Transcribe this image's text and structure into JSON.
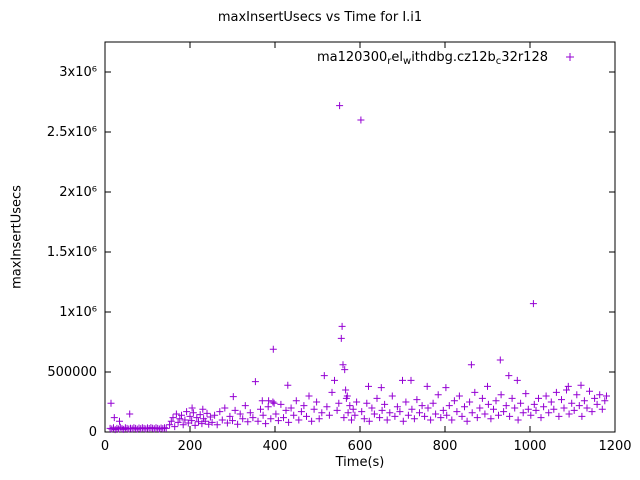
{
  "chart_data": {
    "type": "scatter",
    "title": "maxInsertUsecs vs Time for I.i1",
    "xlabel": "Time(s)",
    "ylabel": "maxInsertUsecs",
    "xlim": [
      0,
      1200
    ],
    "ylim": [
      0,
      3250000
    ],
    "grid": false,
    "x_ticks": [
      0,
      200,
      400,
      600,
      800,
      1000,
      1200
    ],
    "y_ticks": [
      {
        "v": 0,
        "label": "0"
      },
      {
        "v": 500000,
        "label": "500000"
      },
      {
        "v": 1000000,
        "label": "1x10⁶"
      },
      {
        "v": 1500000,
        "label": "1.5x10⁶"
      },
      {
        "v": 2000000,
        "label": "2x10⁶"
      },
      {
        "v": 2500000,
        "label": "2.5x10⁶"
      },
      {
        "v": 3000000,
        "label": "3x10⁶"
      }
    ],
    "legend": {
      "position": "top-right-inside",
      "marker": "plus",
      "segments": [
        {
          "text": "ma120300",
          "sub": false
        },
        {
          "text": "r",
          "sub": true
        },
        {
          "text": "el",
          "sub": false
        },
        {
          "text": "w",
          "sub": true
        },
        {
          "text": "ithdbg.cz12b",
          "sub": false
        },
        {
          "text": "c",
          "sub": true
        },
        {
          "text": "32r128",
          "sub": false
        }
      ]
    },
    "series": [
      {
        "name": "ma120300_rel_withdbg.cz12b_c32r128",
        "marker": "plus",
        "color": "#9400d3",
        "points": [
          [
            12,
            30000
          ],
          [
            14,
            240000
          ],
          [
            16,
            25000
          ],
          [
            20,
            35000
          ],
          [
            22,
            120000
          ],
          [
            24,
            20000
          ],
          [
            28,
            30000
          ],
          [
            32,
            25000
          ],
          [
            34,
            90000
          ],
          [
            36,
            40000
          ],
          [
            40,
            28000
          ],
          [
            44,
            22000
          ],
          [
            48,
            35000
          ],
          [
            52,
            30000
          ],
          [
            56,
            25000
          ],
          [
            58,
            150000
          ],
          [
            60,
            32000
          ],
          [
            64,
            27000
          ],
          [
            68,
            35000
          ],
          [
            72,
            30000
          ],
          [
            76,
            24000
          ],
          [
            80,
            33000
          ],
          [
            84,
            28000
          ],
          [
            88,
            36000
          ],
          [
            92,
            30000
          ],
          [
            96,
            26000
          ],
          [
            100,
            34000
          ],
          [
            104,
            29000
          ],
          [
            108,
            37000
          ],
          [
            112,
            31000
          ],
          [
            116,
            27000
          ],
          [
            120,
            35000
          ],
          [
            124,
            30000
          ],
          [
            128,
            25000
          ],
          [
            132,
            33000
          ],
          [
            136,
            28000
          ],
          [
            140,
            36000
          ],
          [
            144,
            30000
          ],
          [
            152,
            60000
          ],
          [
            156,
            90000
          ],
          [
            160,
            120000
          ],
          [
            164,
            45000
          ],
          [
            168,
            150000
          ],
          [
            172,
            80000
          ],
          [
            176,
            110000
          ],
          [
            180,
            140000
          ],
          [
            184,
            60000
          ],
          [
            188,
            100000
          ],
          [
            192,
            170000
          ],
          [
            196,
            75000
          ],
          [
            200,
            130000
          ],
          [
            204,
            95000
          ],
          [
            205,
            200000
          ],
          [
            208,
            160000
          ],
          [
            212,
            55000
          ],
          [
            216,
            120000
          ],
          [
            220,
            85000
          ],
          [
            224,
            145000
          ],
          [
            228,
            70000
          ],
          [
            230,
            190000
          ],
          [
            232,
            110000
          ],
          [
            236,
            90000
          ],
          [
            240,
            155000
          ],
          [
            244,
            65000
          ],
          [
            248,
            125000
          ],
          [
            252,
            80000
          ],
          [
            258,
            140000
          ],
          [
            264,
            60000
          ],
          [
            270,
            170000
          ],
          [
            276,
            100000
          ],
          [
            282,
            200000
          ],
          [
            288,
            75000
          ],
          [
            294,
            130000
          ],
          [
            300,
            95000
          ],
          [
            302,
            295000
          ],
          [
            306,
            180000
          ],
          [
            312,
            65000
          ],
          [
            318,
            150000
          ],
          [
            324,
            110000
          ],
          [
            330,
            220000
          ],
          [
            336,
            85000
          ],
          [
            342,
            160000
          ],
          [
            348,
            120000
          ],
          [
            354,
            420000
          ],
          [
            360,
            90000
          ],
          [
            366,
            190000
          ],
          [
            370,
            260000
          ],
          [
            372,
            140000
          ],
          [
            378,
            70000
          ],
          [
            384,
            210000
          ],
          [
            385,
            260000
          ],
          [
            390,
            110000
          ],
          [
            395,
            250000
          ],
          [
            396,
            690000
          ],
          [
            398,
            240000
          ],
          [
            402,
            150000
          ],
          [
            408,
            95000
          ],
          [
            414,
            230000
          ],
          [
            420,
            120000
          ],
          [
            426,
            180000
          ],
          [
            430,
            390000
          ],
          [
            432,
            80000
          ],
          [
            438,
            200000
          ],
          [
            444,
            140000
          ],
          [
            450,
            260000
          ],
          [
            456,
            100000
          ],
          [
            462,
            170000
          ],
          [
            468,
            220000
          ],
          [
            474,
            130000
          ],
          [
            480,
            300000
          ],
          [
            486,
            90000
          ],
          [
            492,
            190000
          ],
          [
            498,
            250000
          ],
          [
            504,
            110000
          ],
          [
            510,
            160000
          ],
          [
            516,
            470000
          ],
          [
            522,
            210000
          ],
          [
            528,
            140000
          ],
          [
            534,
            330000
          ],
          [
            540,
            430000
          ],
          [
            546,
            180000
          ],
          [
            550,
            240000
          ],
          [
            552,
            2720000
          ],
          [
            556,
            780000
          ],
          [
            558,
            880000
          ],
          [
            560,
            560000
          ],
          [
            562,
            120000
          ],
          [
            564,
            520000
          ],
          [
            566,
            350000
          ],
          [
            568,
            280000
          ],
          [
            570,
            300000
          ],
          [
            572,
            160000
          ],
          [
            576,
            220000
          ],
          [
            580,
            100000
          ],
          [
            584,
            190000
          ],
          [
            588,
            140000
          ],
          [
            592,
            250000
          ],
          [
            602,
            2600000
          ],
          [
            604,
            170000
          ],
          [
            610,
            110000
          ],
          [
            616,
            240000
          ],
          [
            620,
            380000
          ],
          [
            622,
            90000
          ],
          [
            628,
            200000
          ],
          [
            634,
            150000
          ],
          [
            640,
            280000
          ],
          [
            646,
            120000
          ],
          [
            650,
            370000
          ],
          [
            652,
            180000
          ],
          [
            658,
            230000
          ],
          [
            664,
            100000
          ],
          [
            670,
            160000
          ],
          [
            676,
            300000
          ],
          [
            682,
            130000
          ],
          [
            688,
            210000
          ],
          [
            694,
            170000
          ],
          [
            700,
            430000
          ],
          [
            702,
            90000
          ],
          [
            708,
            250000
          ],
          [
            714,
            140000
          ],
          [
            720,
            430000
          ],
          [
            722,
            190000
          ],
          [
            728,
            110000
          ],
          [
            734,
            270000
          ],
          [
            740,
            160000
          ],
          [
            746,
            220000
          ],
          [
            752,
            130000
          ],
          [
            758,
            380000
          ],
          [
            760,
            200000
          ],
          [
            766,
            100000
          ],
          [
            772,
            240000
          ],
          [
            778,
            150000
          ],
          [
            784,
            310000
          ],
          [
            790,
            120000
          ],
          [
            796,
            180000
          ],
          [
            802,
            370000
          ],
          [
            804,
            140000
          ],
          [
            810,
            220000
          ],
          [
            816,
            100000
          ],
          [
            822,
            260000
          ],
          [
            828,
            170000
          ],
          [
            834,
            300000
          ],
          [
            840,
            130000
          ],
          [
            846,
            210000
          ],
          [
            852,
            90000
          ],
          [
            858,
            250000
          ],
          [
            862,
            560000
          ],
          [
            864,
            160000
          ],
          [
            870,
            330000
          ],
          [
            876,
            120000
          ],
          [
            882,
            200000
          ],
          [
            888,
            280000
          ],
          [
            894,
            150000
          ],
          [
            900,
            380000
          ],
          [
            902,
            230000
          ],
          [
            908,
            110000
          ],
          [
            914,
            190000
          ],
          [
            920,
            260000
          ],
          [
            926,
            140000
          ],
          [
            930,
            600000
          ],
          [
            932,
            310000
          ],
          [
            938,
            170000
          ],
          [
            944,
            220000
          ],
          [
            950,
            470000
          ],
          [
            952,
            130000
          ],
          [
            958,
            280000
          ],
          [
            964,
            200000
          ],
          [
            970,
            430000
          ],
          [
            972,
            100000
          ],
          [
            978,
            240000
          ],
          [
            984,
            160000
          ],
          [
            990,
            320000
          ],
          [
            996,
            190000
          ],
          [
            1002,
            140000
          ],
          [
            1008,
            1070000
          ],
          [
            1010,
            230000
          ],
          [
            1014,
            180000
          ],
          [
            1020,
            280000
          ],
          [
            1026,
            120000
          ],
          [
            1032,
            210000
          ],
          [
            1038,
            300000
          ],
          [
            1044,
            160000
          ],
          [
            1050,
            250000
          ],
          [
            1056,
            190000
          ],
          [
            1062,
            330000
          ],
          [
            1068,
            130000
          ],
          [
            1074,
            270000
          ],
          [
            1080,
            200000
          ],
          [
            1086,
            350000
          ],
          [
            1090,
            380000
          ],
          [
            1092,
            150000
          ],
          [
            1098,
            240000
          ],
          [
            1104,
            180000
          ],
          [
            1110,
            310000
          ],
          [
            1116,
            220000
          ],
          [
            1120,
            390000
          ],
          [
            1122,
            130000
          ],
          [
            1128,
            260000
          ],
          [
            1134,
            200000
          ],
          [
            1140,
            340000
          ],
          [
            1146,
            170000
          ],
          [
            1152,
            280000
          ],
          [
            1158,
            230000
          ],
          [
            1164,
            310000
          ],
          [
            1170,
            190000
          ],
          [
            1176,
            260000
          ],
          [
            1180,
            300000
          ]
        ]
      }
    ]
  }
}
